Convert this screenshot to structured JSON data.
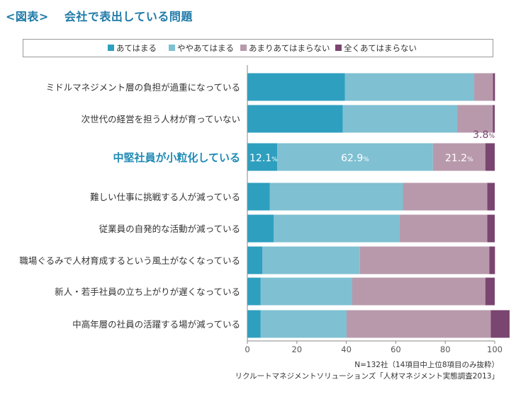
{
  "figure": {
    "label": "<図表>",
    "title": "会社で表出している問題"
  },
  "colors": {
    "title": "#1f7aa8",
    "highlight_label": "#1f8bb5",
    "small_value": "#7a4570",
    "series": [
      "#2e9fbf",
      "#7fc0d2",
      "#b899ab",
      "#7a4570"
    ],
    "axis": "#888888",
    "grid": "#cccccc"
  },
  "source": {
    "note": "N=132社（14項目中上位8項目のみ抜粋）",
    "citation": "リクルートマネジメントソリューションズ「人材マネジメント実態調査2013」"
  },
  "chart_data": {
    "type": "bar",
    "orientation": "horizontal",
    "stacked": true,
    "title": "会社で表出している問題",
    "xlim": [
      0,
      100
    ],
    "xticks": [
      0,
      20,
      40,
      60,
      80,
      100
    ],
    "grid": false,
    "legend_position": "top",
    "highlight_index": 2,
    "categories": [
      "ミドルマネジメント層の負担が過重になっている",
      "次世代の経営を担う人材が育っていない",
      "中堅社員が小粒化している",
      "難しい仕事に挑戦する人が減っている",
      "従業員の自発的な活動が減っている",
      "職場ぐるみで人材育成するという風土がなくなっている",
      "新人・若手社員の立ち上がりが遅くなっている",
      "中高年層の社員の活躍する場が減っている"
    ],
    "series": [
      {
        "name": "あてはまる",
        "values": [
          39.4,
          38.6,
          12.1,
          9.1,
          10.6,
          6.1,
          5.3,
          5.3
        ]
      },
      {
        "name": "ややあてはまる",
        "values": [
          52.3,
          46.2,
          62.9,
          53.8,
          50.8,
          39.4,
          37.1,
          34.8
        ]
      },
      {
        "name": "あまりあてはまらない",
        "values": [
          7.6,
          14.4,
          21.2,
          34.1,
          35.6,
          52.3,
          53.8,
          58.3
        ]
      },
      {
        "name": "全くあてはまらない",
        "values": [
          0.8,
          0.8,
          3.8,
          3.0,
          3.0,
          2.3,
          3.8,
          7.6
        ]
      }
    ],
    "data_labels": {
      "category_index": 2,
      "labels": [
        {
          "value": "12.1",
          "unit": "%"
        },
        {
          "value": "62.9",
          "unit": "%"
        },
        {
          "value": "21.2",
          "unit": "%"
        },
        {
          "value": "3.8",
          "unit": "%"
        }
      ]
    }
  }
}
